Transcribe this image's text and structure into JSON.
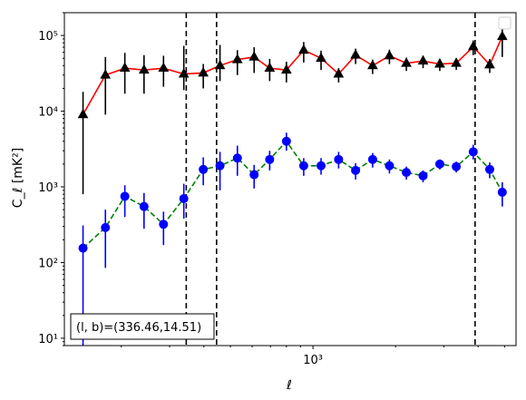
{
  "chart_data": {
    "type": "scatter",
    "title": "",
    "xlabel": "ℓ",
    "ylabel": "C_ℓ  [mK²]",
    "x_scale": "log",
    "y_scale": "log",
    "xlim": [
      124,
      5500
    ],
    "ylim": [
      8,
      200000
    ],
    "x_major_ticks": [
      1000
    ],
    "x_major_tick_labels": [
      "10³"
    ],
    "y_major_ticks": [
      10,
      100,
      1000,
      10000,
      100000
    ],
    "y_major_tick_labels": [
      "10¹",
      "10²",
      "10³",
      "10⁴",
      "10⁵"
    ],
    "grid": false,
    "legend": {
      "placement": "top-right",
      "entries": []
    },
    "annotation": "(l, b)=(336.46,14.51)",
    "vlines": [
      345,
      445,
      3900
    ],
    "series": [
      {
        "marker": "triangle",
        "color": "#000000",
        "line_color": "#ff0000",
        "line_style": "solid",
        "x": [
          145,
          175,
          206,
          242,
          285,
          338,
          398,
          458,
          530,
          610,
          695,
          800,
          925,
          1070,
          1240,
          1430,
          1650,
          1900,
          2190,
          2520,
          2900,
          3330,
          3840,
          4410,
          4900
        ],
        "y": [
          9000,
          30000,
          37000,
          35000,
          37000,
          31000,
          32000,
          40000,
          48000,
          52000,
          37000,
          35000,
          64000,
          50000,
          31000,
          55000,
          40000,
          54000,
          43000,
          46000,
          42000,
          43000,
          71000,
          41000,
          97000
        ],
        "y_err_low": [
          8200,
          21000,
          20000,
          18000,
          16000,
          12000,
          12000,
          15000,
          18000,
          20000,
          12000,
          11000,
          20000,
          15000,
          7000,
          13000,
          9000,
          12000,
          9000,
          9000,
          8000,
          8000,
          16000,
          9000,
          45000
        ],
        "y_err_high": [
          9000,
          22000,
          22000,
          20000,
          17000,
          42000,
          10000,
          35000,
          16000,
          18000,
          12000,
          10000,
          18000,
          13000,
          6000,
          12000,
          8000,
          11000,
          8000,
          8000,
          7000,
          7000,
          15000,
          8000,
          30000
        ]
      },
      {
        "marker": "circle",
        "color": "#0000ff",
        "line_color": "#008000",
        "line_style": "dashed",
        "x": [
          145,
          175,
          206,
          242,
          285,
          338,
          398,
          458,
          530,
          610,
          695,
          800,
          925,
          1070,
          1240,
          1430,
          1650,
          1900,
          2190,
          2520,
          2900,
          3330,
          3840,
          4410,
          4900
        ],
        "y": [
          155,
          290,
          750,
          550,
          320,
          700,
          1700,
          1900,
          2400,
          1450,
          2300,
          4000,
          1900,
          1900,
          2300,
          1650,
          2300,
          1900,
          1550,
          1400,
          2000,
          1850,
          2900,
          1700,
          850
        ],
        "y_err_low": [
          147,
          205,
          350,
          270,
          150,
          320,
          650,
          1000,
          1000,
          500,
          650,
          1000,
          500,
          450,
          550,
          400,
          500,
          400,
          300,
          250,
          300,
          300,
          600,
          400,
          300
        ],
        "y_err_high": [
          155,
          210,
          300,
          280,
          150,
          400,
          750,
          1000,
          1100,
          500,
          700,
          1200,
          500,
          500,
          600,
          400,
          500,
          400,
          300,
          250,
          300,
          300,
          700,
          400,
          300
        ]
      }
    ]
  }
}
